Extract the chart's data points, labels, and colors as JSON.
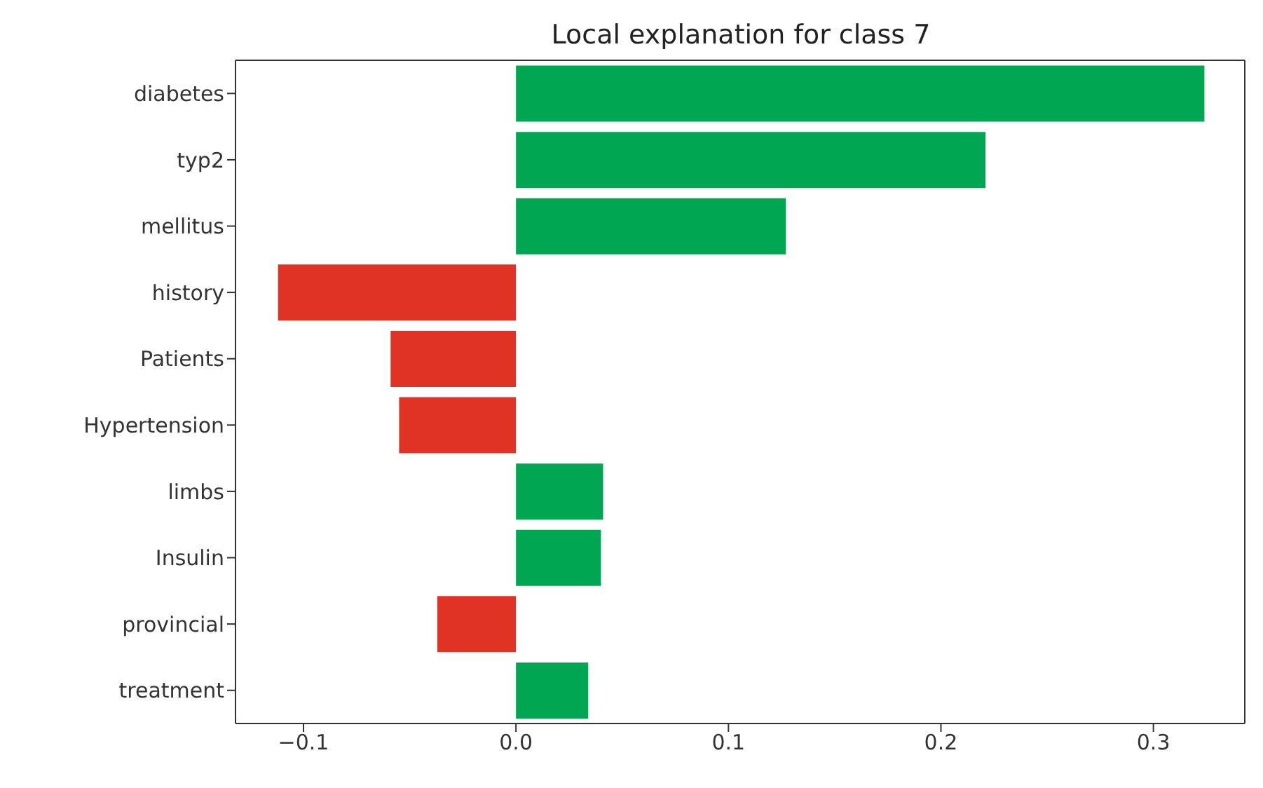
{
  "chart_data": {
    "type": "bar",
    "orientation": "horizontal",
    "title": "Local explanation for class 7",
    "categories": [
      "diabetes",
      "typ2",
      "mellitus",
      "history",
      "Patients",
      "Hypertension",
      "limbs",
      "Insulin",
      "provincial",
      "treatment"
    ],
    "values": [
      0.324,
      0.221,
      0.127,
      -0.112,
      -0.059,
      -0.055,
      0.041,
      0.04,
      -0.037,
      0.034
    ],
    "colors": [
      "#00a651",
      "#00a651",
      "#00a651",
      "#e03326",
      "#e03326",
      "#e03326",
      "#00a651",
      "#00a651",
      "#e03326",
      "#00a651"
    ],
    "xlim": [
      -0.132,
      0.343
    ],
    "xticks": [
      {
        "value": -0.1,
        "label": "−0.1"
      },
      {
        "value": 0,
        "label": "0.0"
      },
      {
        "value": 0.1,
        "label": "0.1"
      },
      {
        "value": 0.2,
        "label": "0.2"
      },
      {
        "value": 0.3,
        "label": "0.3"
      }
    ],
    "grid": false
  }
}
